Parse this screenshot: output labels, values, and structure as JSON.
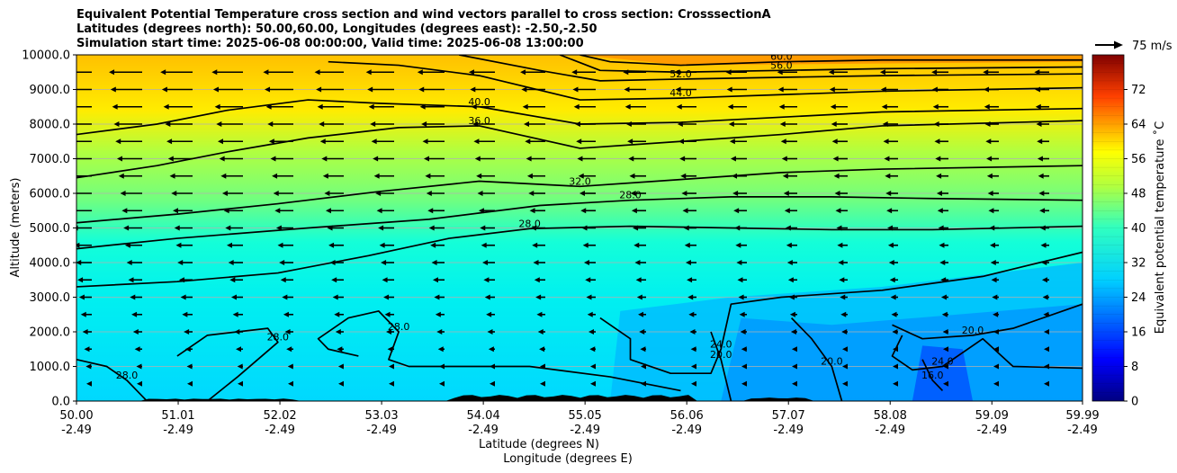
{
  "titles": [
    "Equivalent Potential Temperature cross section and wind vectors parallel to cross section: CrosssectionA",
    "Latitudes (degrees north): 50.00,60.00, Longitudes (degrees east): -2.50,-2.50",
    "Simulation start time: 2025-06-08 00:00:00, Valid time: 2025-06-08 13:00:00"
  ],
  "chart_data": {
    "type": "heatmap",
    "xlabel_line1": "Latitude (degrees N)",
    "xlabel_line2": "Longitude (degrees E)",
    "ylabel": "Altitude (meters)",
    "ylim": [
      0,
      10000
    ],
    "y_ticks": [
      "0.0",
      "1000.0",
      "2000.0",
      "3000.0",
      "4000.0",
      "5000.0",
      "6000.0",
      "7000.0",
      "8000.0",
      "9000.0",
      "10000.0"
    ],
    "y_tick_values": [
      0,
      1000,
      2000,
      3000,
      4000,
      5000,
      6000,
      7000,
      8000,
      9000,
      10000
    ],
    "xlim": [
      50.0,
      59.99
    ],
    "x_ticks": [
      {
        "lat": "50.00",
        "lon": "-2.49",
        "v": 50.0
      },
      {
        "lat": "51.01",
        "lon": "-2.49",
        "v": 51.01
      },
      {
        "lat": "52.02",
        "lon": "-2.49",
        "v": 52.02
      },
      {
        "lat": "53.03",
        "lon": "-2.49",
        "v": 53.03
      },
      {
        "lat": "54.04",
        "lon": "-2.49",
        "v": 54.04
      },
      {
        "lat": "55.05",
        "lon": "-2.49",
        "v": 55.05
      },
      {
        "lat": "56.06",
        "lon": "-2.49",
        "v": 56.06
      },
      {
        "lat": "57.07",
        "lon": "-2.49",
        "v": 57.07
      },
      {
        "lat": "58.08",
        "lon": "-2.49",
        "v": 58.08
      },
      {
        "lat": "59.09",
        "lon": "-2.49",
        "v": 59.09
      },
      {
        "lat": "59.99",
        "lon": "-2.49",
        "v": 59.99
      }
    ],
    "colorbar": {
      "label": "Equivalent potential temperature ˚C",
      "range": [
        0,
        80
      ],
      "ticks": [
        "0",
        "8",
        "16",
        "24",
        "32",
        "40",
        "48",
        "56",
        "64",
        "72"
      ],
      "tick_values": [
        0,
        8,
        16,
        24,
        32,
        40,
        48,
        56,
        64,
        72
      ]
    },
    "quiver_key": "75 m/s",
    "contours": [
      {
        "value": 28,
        "label": "28.0",
        "points": [
          [
            50.0,
            3300
          ],
          [
            51.0,
            3450
          ],
          [
            52.0,
            3700
          ],
          [
            52.9,
            4200
          ],
          [
            53.7,
            4700
          ],
          [
            54.5,
            4980
          ],
          [
            55.5,
            5050
          ],
          [
            56.5,
            5000
          ],
          [
            57.5,
            4950
          ],
          [
            58.5,
            4950
          ],
          [
            59.99,
            5050
          ]
        ]
      },
      {
        "value": 28,
        "label": "28.0",
        "points": [
          [
            50.0,
            4400
          ],
          [
            51.0,
            4700
          ],
          [
            52.3,
            5000
          ],
          [
            53.5,
            5250
          ],
          [
            54.6,
            5650
          ],
          [
            55.5,
            5800
          ],
          [
            56.5,
            5900
          ],
          [
            57.5,
            5900
          ],
          [
            58.5,
            5850
          ],
          [
            59.99,
            5800
          ]
        ]
      },
      {
        "value": 32,
        "label": "32.0",
        "points": [
          [
            50.0,
            5150
          ],
          [
            51.0,
            5400
          ],
          [
            52.0,
            5700
          ],
          [
            53.0,
            6050
          ],
          [
            54.0,
            6350
          ],
          [
            55.0,
            6200
          ],
          [
            56.0,
            6400
          ],
          [
            57.0,
            6600
          ],
          [
            58.0,
            6700
          ],
          [
            59.99,
            6800
          ]
        ]
      },
      {
        "value": 36,
        "label": "36.0",
        "points": [
          [
            50.0,
            6450
          ],
          [
            50.8,
            6800
          ],
          [
            51.5,
            7200
          ],
          [
            52.3,
            7600
          ],
          [
            53.2,
            7900
          ],
          [
            54.0,
            7950
          ],
          [
            55.0,
            7300
          ],
          [
            56.0,
            7500
          ],
          [
            57.0,
            7700
          ],
          [
            58.0,
            7950
          ],
          [
            59.99,
            8100
          ]
        ]
      },
      {
        "value": 40,
        "label": "40.0",
        "points": [
          [
            50.0,
            7700
          ],
          [
            50.8,
            8000
          ],
          [
            51.5,
            8400
          ],
          [
            52.3,
            8700
          ],
          [
            53.0,
            8600
          ],
          [
            54.0,
            8500
          ],
          [
            55.0,
            8000
          ],
          [
            56.0,
            8050
          ],
          [
            57.0,
            8200
          ],
          [
            58.0,
            8350
          ],
          [
            59.99,
            8450
          ]
        ]
      },
      {
        "value": 44,
        "label": "44.0",
        "points": [
          [
            52.5,
            9800
          ],
          [
            53.2,
            9700
          ],
          [
            54.0,
            9400
          ],
          [
            55.0,
            8700
          ],
          [
            56.0,
            8750
          ],
          [
            57.0,
            8850
          ],
          [
            58.0,
            8950
          ],
          [
            59.99,
            9050
          ]
        ]
      },
      {
        "value": 52,
        "label": "52.0",
        "points": [
          [
            53.8,
            10000
          ],
          [
            54.6,
            9550
          ],
          [
            55.2,
            9250
          ],
          [
            56.0,
            9300
          ],
          [
            57.0,
            9350
          ],
          [
            58.0,
            9400
          ],
          [
            59.99,
            9450
          ]
        ]
      },
      {
        "value": 56,
        "label": "56.0",
        "points": [
          [
            54.8,
            10000
          ],
          [
            55.2,
            9550
          ],
          [
            56.0,
            9500
          ],
          [
            57.0,
            9550
          ],
          [
            58.0,
            9600
          ],
          [
            59.99,
            9650
          ]
        ]
      },
      {
        "value": 60,
        "label": "60.0",
        "points": [
          [
            55.0,
            10000
          ],
          [
            55.3,
            9800
          ],
          [
            56.0,
            9700
          ],
          [
            57.0,
            9800
          ],
          [
            58.0,
            9850
          ],
          [
            59.99,
            9850
          ]
        ]
      },
      {
        "value": 28,
        "label": "28.0",
        "points": [
          [
            50.0,
            1200
          ],
          [
            50.3,
            1000
          ],
          [
            50.5,
            600
          ],
          [
            50.6,
            300
          ],
          [
            50.7,
            0
          ]
        ]
      },
      {
        "value": 28,
        "label": "28.0",
        "points": [
          [
            51.0,
            1300
          ],
          [
            51.3,
            1900
          ],
          [
            51.9,
            2100
          ],
          [
            52.0,
            1700
          ],
          [
            51.8,
            1200
          ],
          [
            51.6,
            700
          ],
          [
            51.3,
            0
          ]
        ]
      },
      {
        "value": 28,
        "label": "28.0",
        "points": [
          [
            52.8,
            1300
          ],
          [
            52.5,
            1500
          ],
          [
            52.4,
            1800
          ],
          [
            52.7,
            2400
          ],
          [
            53.0,
            2600
          ],
          [
            53.2,
            2000
          ],
          [
            53.1,
            1200
          ],
          [
            53.3,
            1000
          ],
          [
            54.5,
            1000
          ],
          [
            55.3,
            700
          ],
          [
            56.0,
            300
          ]
        ]
      },
      {
        "value": 24,
        "label": "24.0",
        "points": [
          [
            55.2,
            2400
          ],
          [
            55.5,
            1800
          ],
          [
            55.5,
            1200
          ],
          [
            55.9,
            800
          ],
          [
            56.3,
            800
          ],
          [
            56.4,
            1500
          ],
          [
            56.5,
            2800
          ],
          [
            57.0,
            3000
          ],
          [
            58.0,
            3200
          ],
          [
            59.0,
            3600
          ],
          [
            59.99,
            4300
          ]
        ]
      },
      {
        "value": 20,
        "label": "20.0",
        "points": [
          [
            56.3,
            2000
          ],
          [
            56.4,
            1200
          ],
          [
            56.5,
            0
          ]
        ]
      },
      {
        "value": 20,
        "label": "20.0",
        "points": [
          [
            57.1,
            2400
          ],
          [
            57.3,
            1800
          ],
          [
            57.5,
            1000
          ],
          [
            57.6,
            0
          ]
        ]
      },
      {
        "value": 16,
        "label": "16.0",
        "points": [
          [
            58.4,
            1200
          ],
          [
            58.5,
            600
          ],
          [
            58.6,
            300
          ]
        ]
      },
      {
        "value": 20,
        "label": "20.0",
        "points": [
          [
            58.1,
            2200
          ],
          [
            58.4,
            1800
          ],
          [
            58.9,
            1900
          ],
          [
            59.3,
            2100
          ],
          [
            59.99,
            2800
          ]
        ]
      },
      {
        "value": 24,
        "label": "24.0",
        "points": [
          [
            58.2,
            1900
          ],
          [
            58.1,
            1300
          ],
          [
            58.3,
            900
          ],
          [
            58.6,
            1000
          ],
          [
            59.0,
            1800
          ],
          [
            59.3,
            1000
          ],
          [
            59.99,
            950
          ]
        ]
      }
    ]
  }
}
